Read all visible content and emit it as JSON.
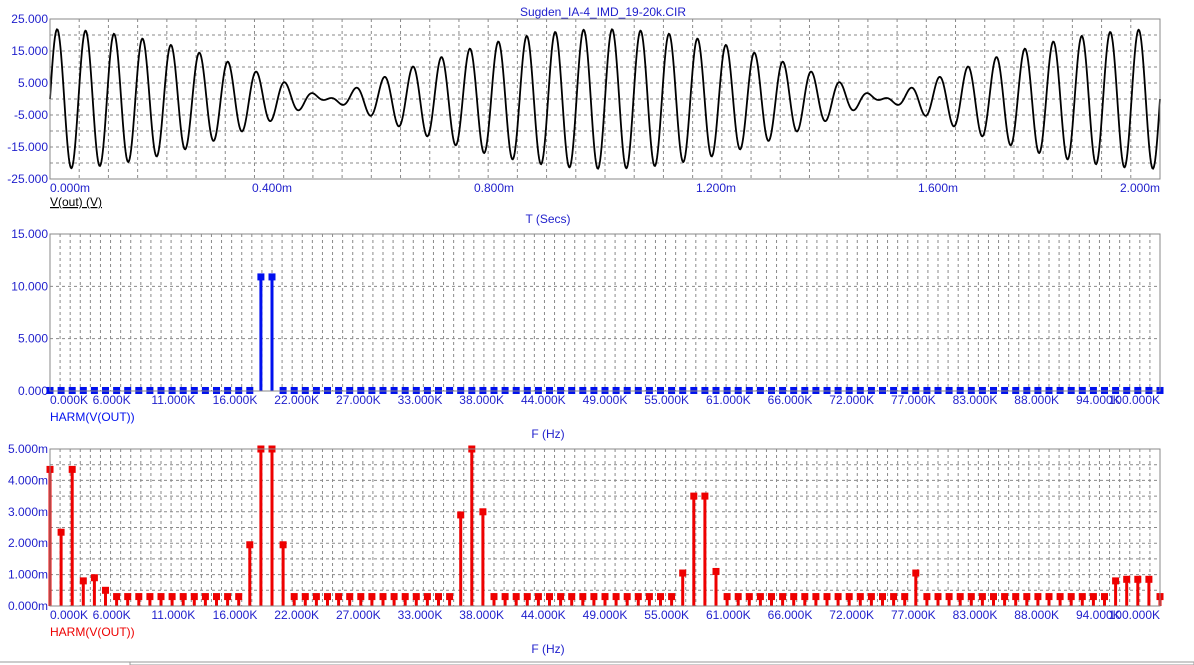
{
  "title": "Sugden_IA-4_IMD_19-20k.CIR",
  "colors": {
    "axis_text": "#1f1fcc",
    "grid": "#8a8a8a",
    "frame": "#888888",
    "trace_top": "#000000",
    "trace_mid": "#0010ee",
    "trace_bottom": "#ee0000"
  },
  "chart_data": [
    {
      "type": "line",
      "series": [
        {
          "name": "V(out) (V)",
          "model": "sum_of_sines",
          "components": [
            {
              "freq_hz": 19000,
              "amplitude": 10.9
            },
            {
              "freq_hz": 20000,
              "amplitude": 10.9
            }
          ]
        }
      ],
      "xlabel": "T (Secs)",
      "ylabel": "V(out) (V)",
      "xlim": [
        0,
        0.002
      ],
      "ylim": [
        -25,
        25
      ],
      "xticks": [
        "0.000m",
        "0.400m",
        "0.800m",
        "1.200m",
        "1.600m",
        "2.000m"
      ],
      "yticks": [
        "25.000",
        "15.000",
        "5.000",
        "-5.000",
        "-15.000",
        "-25.000"
      ],
      "grid": true
    },
    {
      "type": "bar",
      "series": [
        {
          "name": "HARM(V(OUT))",
          "bin_hz": 1000,
          "baseline": 0.05,
          "peaks": [
            [
              19000,
              10.9
            ],
            [
              20000,
              10.9
            ]
          ]
        }
      ],
      "xlabel": "F (Hz)",
      "xlim": [
        0,
        100000
      ],
      "ylim": [
        0,
        15
      ],
      "xticks": [
        "0.000K",
        "6.000K",
        "11.000K",
        "16.000K",
        "22.000K",
        "27.000K",
        "33.000K",
        "38.000K",
        "44.000K",
        "49.000K",
        "55.000K",
        "61.000K",
        "66.000K",
        "72.000K",
        "77.000K",
        "83.000K",
        "88.000K",
        "94.000K",
        "100.000K"
      ],
      "yticks": [
        "15.000",
        "10.000",
        "5.000",
        "0.000"
      ],
      "grid": true
    },
    {
      "type": "bar",
      "series": [
        {
          "name": "HARM(V(OUT))",
          "bin_hz": 1000,
          "baseline_mV": 0.3,
          "peaks_mV": [
            [
              0,
              4.35
            ],
            [
              1000,
              2.35
            ],
            [
              2000,
              4.35
            ],
            [
              3000,
              0.8
            ],
            [
              4000,
              0.9
            ],
            [
              5000,
              0.5
            ],
            [
              18000,
              1.95
            ],
            [
              19000,
              5.0
            ],
            [
              20000,
              5.0
            ],
            [
              21000,
              1.95
            ],
            [
              37000,
              2.9
            ],
            [
              38000,
              5.0
            ],
            [
              39000,
              3.0
            ],
            [
              57000,
              1.05
            ],
            [
              58000,
              3.5
            ],
            [
              59000,
              3.5
            ],
            [
              60000,
              1.1
            ],
            [
              78000,
              1.05
            ],
            [
              96000,
              0.8
            ],
            [
              97000,
              0.85
            ],
            [
              98000,
              0.85
            ],
            [
              99000,
              0.85
            ]
          ]
        }
      ],
      "xlabel": "F (Hz)",
      "xlim": [
        0,
        100000
      ],
      "ylim": [
        0,
        5
      ],
      "xticks": [
        "0.000K",
        "6.000K",
        "11.000K",
        "16.000K",
        "22.000K",
        "27.000K",
        "33.000K",
        "38.000K",
        "44.000K",
        "49.000K",
        "55.000K",
        "61.000K",
        "66.000K",
        "72.000K",
        "77.000K",
        "83.000K",
        "88.000K",
        "94.000K",
        "100.000K"
      ],
      "yticks": [
        "5.000m",
        "4.000m",
        "3.000m",
        "2.000m",
        "1.000m",
        "0.000m"
      ],
      "grid": true
    }
  ]
}
